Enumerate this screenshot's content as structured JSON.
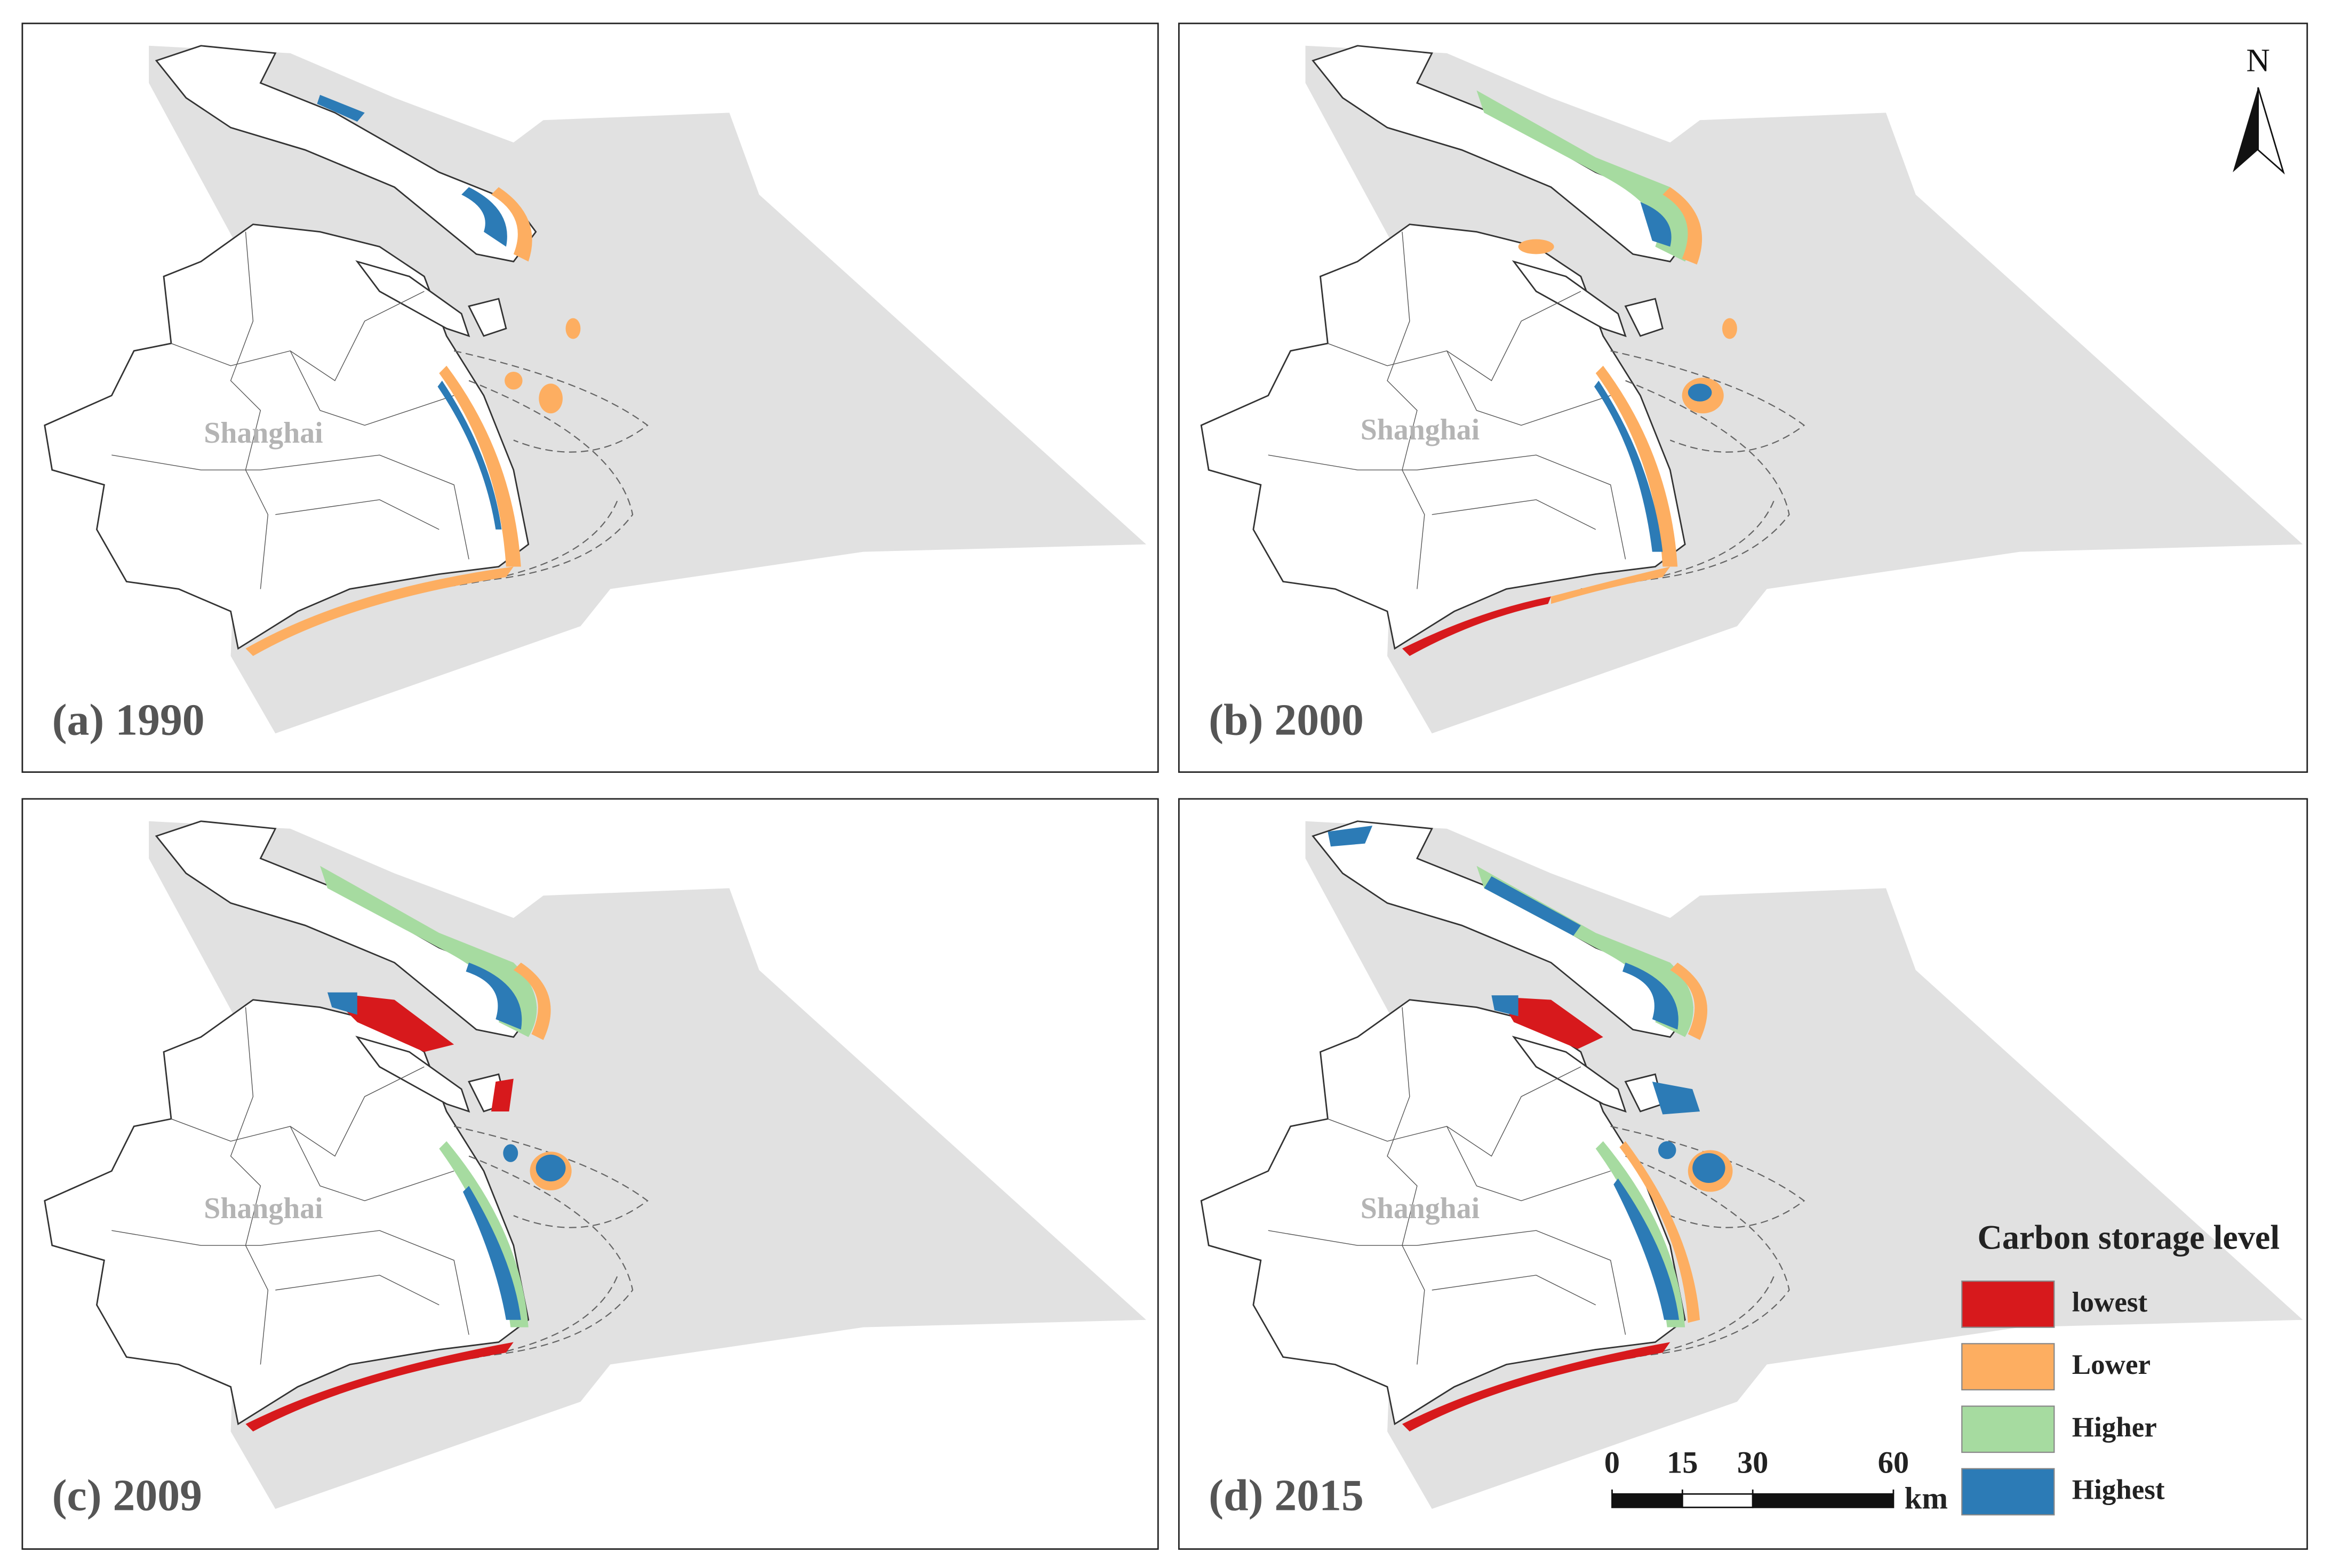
{
  "panels": [
    {
      "label": "(a) 1990",
      "city": "Shanghai"
    },
    {
      "label": "(b) 2000",
      "city": "Shanghai"
    },
    {
      "label": "(c) 2009",
      "city": "Shanghai"
    },
    {
      "label": "(d) 2015",
      "city": "Shanghai"
    }
  ],
  "north_arrow": "N",
  "legend": {
    "title": "Carbon storage level",
    "items": [
      {
        "label": "lowest",
        "color": "#d7191c"
      },
      {
        "label": "Lower",
        "color": "#fdae61"
      },
      {
        "label": "Higher",
        "color": "#a6dba0"
      },
      {
        "label": "Highest",
        "color": "#2c7bb6"
      }
    ]
  },
  "scale_bar": {
    "ticks": [
      0,
      15,
      30,
      60
    ],
    "unit": "km"
  }
}
